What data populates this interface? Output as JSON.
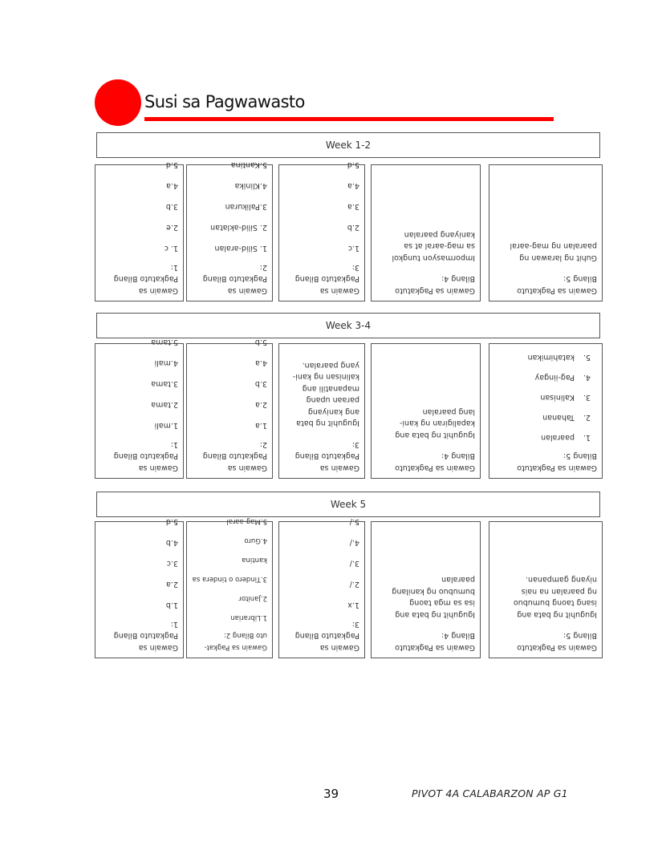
{
  "header": {
    "title": "Susi sa Pagwawasto",
    "accent_color": "#ff0000"
  },
  "sections": [
    {
      "week": "Week 1-2",
      "boxes": [
        {
          "title": [
            "Gawain sa",
            "Pagkatuto Bilang",
            "1:"
          ],
          "items": [
            "1. c",
            "2.e",
            "3.b",
            "4.a",
            "5.d"
          ]
        },
        {
          "title": [
            "Gawain sa",
            "Pagkatuto Bilang",
            "2:"
          ],
          "items": [
            "1. Silid-aralan",
            "2. Silid-aklatan",
            "3.Palikuran",
            "4.Klinika",
            "5.Kantina"
          ]
        },
        {
          "title": [
            "Gawain sa",
            "Pagkatuto Bilang",
            "3:"
          ],
          "items": [
            "1.c",
            "2.b",
            "3.a",
            "4.a",
            "5.d"
          ]
        },
        {
          "title": [
            "Gawain sa Pagkatuto",
            "Bilang 4:"
          ],
          "paragraph": [
            "Impormasyon tungkol",
            "sa mag-aaral at sa",
            "kaniyang paaralan"
          ]
        },
        {
          "title": [
            "Gawain sa Pagkatuto",
            "Bilang 5:"
          ],
          "paragraph": [
            "Guhit ng larawan ng",
            "paaralan ng mag-aaral"
          ]
        }
      ]
    },
    {
      "week": "Week 3-4",
      "boxes": [
        {
          "title": [
            "Gawain sa",
            "Pagkatuto Bilang",
            "1:"
          ],
          "items": [
            "1.mali",
            "2.tama",
            "3.tama",
            "4.mali",
            "5.tama"
          ]
        },
        {
          "title": [
            "Gawain sa",
            "Pagkatuto Bilang",
            "2:"
          ],
          "items": [
            "1.a",
            "2.a",
            "3.b",
            "4.a",
            "5.b"
          ]
        },
        {
          "title": [
            "Gawain sa",
            "Pagkatuto Bilang",
            "3:"
          ],
          "paragraph": [
            "Iguguhit ng bata",
            "ang kaniyang",
            "paraan upang",
            "mapanatili ang",
            "kalinisan ng kani-",
            "yang paaralan."
          ]
        },
        {
          "title": [
            "Gawain sa Pagkatuto",
            "Bilang 4:"
          ],
          "paragraph": [
            "Iguguhit ng bata ang",
            "kapaligiran ng kani-",
            "lang paaralan"
          ]
        },
        {
          "title": [
            "Gawain sa Pagkatuto",
            "Bilang 5:"
          ],
          "numbered": [
            {
              "num": "1.",
              "text": "paaralan"
            },
            {
              "num": "2.",
              "text": "Tahanan"
            },
            {
              "num": "3.",
              "text": "Kalinisan"
            },
            {
              "num": "4.",
              "text": "Pag-iingay"
            },
            {
              "num": "5.",
              "text": "katahimikan"
            }
          ]
        }
      ]
    },
    {
      "week": "Week 5",
      "boxes": [
        {
          "title": [
            "Gawain sa",
            "Pagkatuto Bilang",
            "1:"
          ],
          "items": [
            "1.b",
            "2.a",
            "3.c",
            "4.b",
            "5.d"
          ]
        },
        {
          "title": [
            "Gawain sa Pagkat-",
            "uto Bilang 2:"
          ],
          "small": true,
          "items": [
            "1.Librarian",
            "2.Janitor",
            "3.Tindero o tindera sa kantina",
            "4.Guro",
            "5.Mag-aaral"
          ]
        },
        {
          "title": [
            "Gawain sa",
            "Pagkatuto Bilang",
            "3:"
          ],
          "items": [
            "1.x",
            "2./",
            "3./",
            "4./",
            "5./"
          ]
        },
        {
          "title": [
            "Gawain sa Pagkatuto",
            "Bilang 4:"
          ],
          "paragraph": [
            "Iguguhit ng bata ang",
            "isa sa mga taong",
            "bumubuo ng kanilang",
            "paaralan"
          ]
        },
        {
          "title": [
            "Gawain sa Pagkatuto",
            "Bilang 5:"
          ],
          "paragraph": [
            "Iguguhit ng bata ang",
            "isang taong bumubuo",
            "ng paaralan na nais",
            "niyang gampanan."
          ]
        }
      ]
    }
  ],
  "footer": {
    "page_number": "39",
    "text": "PIVOT 4A CALABARZON AP G1"
  }
}
